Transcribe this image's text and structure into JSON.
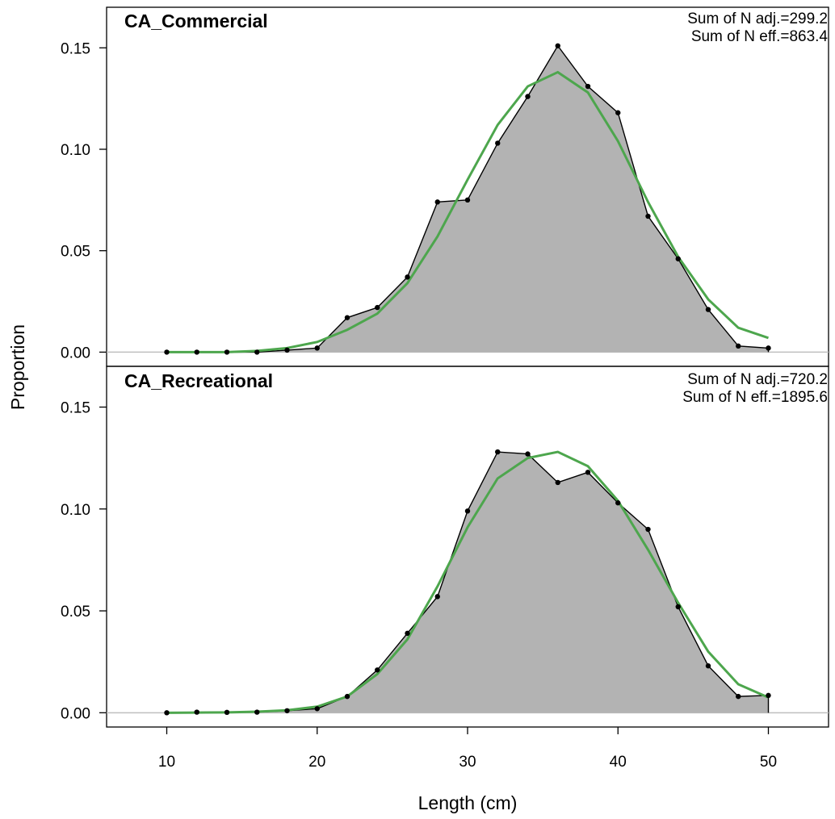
{
  "chart_data": {
    "type": "area",
    "xlabel": "Length (cm)",
    "ylabel": "Proportion",
    "xlim": [
      6,
      54
    ],
    "ylim": [
      -0.007,
      0.17
    ],
    "x_ticks": [
      10,
      20,
      30,
      40,
      50
    ],
    "y_ticks": [
      0.0,
      0.05,
      0.1,
      0.15
    ],
    "y_tick_labels": [
      "0.00",
      "0.05",
      "0.10",
      "0.15"
    ],
    "colors": {
      "observed_fill": "#b3b3b3",
      "observed_line": "#000000",
      "expected_line": "#4da64d",
      "baseline": "#bfbfbf"
    },
    "panels": [
      {
        "title": "CA_Commercial",
        "annotations": [
          "Sum of N adj.=299.2",
          "Sum of N eff.=863.4"
        ],
        "x": [
          10,
          12,
          14,
          16,
          18,
          20,
          22,
          24,
          26,
          28,
          30,
          32,
          34,
          36,
          38,
          40,
          42,
          44,
          46,
          48,
          50
        ],
        "observed": [
          0.0,
          0.0,
          0.0,
          0.0,
          0.001,
          0.002,
          0.017,
          0.022,
          0.037,
          0.074,
          0.075,
          0.103,
          0.126,
          0.151,
          0.131,
          0.118,
          0.067,
          0.046,
          0.021,
          0.003,
          0.002
        ],
        "expected": [
          0.0,
          0.0,
          0.0,
          0.0006,
          0.002,
          0.005,
          0.011,
          0.019,
          0.034,
          0.057,
          0.085,
          0.112,
          0.131,
          0.138,
          0.128,
          0.104,
          0.074,
          0.047,
          0.026,
          0.012,
          0.007
        ]
      },
      {
        "title": "CA_Recreational",
        "annotations": [
          "Sum of N adj.=720.2",
          "Sum of N eff.=1895.6"
        ],
        "x": [
          10,
          12,
          14,
          16,
          18,
          20,
          22,
          24,
          26,
          28,
          30,
          32,
          34,
          36,
          38,
          40,
          42,
          44,
          46,
          48,
          50
        ],
        "observed": [
          0.0,
          0.0003,
          0.0002,
          0.0003,
          0.001,
          0.002,
          0.008,
          0.021,
          0.039,
          0.057,
          0.099,
          0.128,
          0.127,
          0.113,
          0.118,
          0.103,
          0.09,
          0.052,
          0.023,
          0.008,
          0.0085
        ],
        "expected": [
          0.0,
          0.0001,
          0.0002,
          0.0005,
          0.0012,
          0.003,
          0.008,
          0.019,
          0.036,
          0.062,
          0.091,
          0.115,
          0.125,
          0.128,
          0.121,
          0.104,
          0.08,
          0.054,
          0.03,
          0.014,
          0.0075
        ]
      }
    ]
  }
}
